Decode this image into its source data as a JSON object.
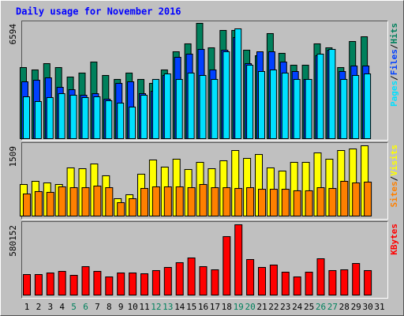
{
  "title": "Daily usage for November 2016",
  "chart_data": [
    {
      "type": "bar",
      "ylim": [
        0,
        6594
      ],
      "yticks": [
        6594
      ],
      "legend_separator": "/",
      "series": [
        {
          "name": "Hits",
          "color": "#00805c",
          "values": [
            4065,
            3930,
            4290,
            4065,
            3523,
            3750,
            4380,
            3613,
            3387,
            3750,
            3387,
            3161,
            3930,
            4968,
            5420,
            6594,
            5194,
            6188,
            6188,
            5058,
            4742,
            6007,
            4878,
            4200,
            4200,
            5420,
            5194,
            4065,
            5555,
            5826,
            null
          ]
        },
        {
          "name": "Files",
          "color": "#0040ff",
          "values": [
            3252,
            3342,
            3478,
            2935,
            2800,
            2484,
            2574,
            2258,
            3161,
            3252,
            2574,
            2710,
            3613,
            4652,
            4833,
            5104,
            3930,
            5058,
            5781,
            4290,
            4968,
            4968,
            4380,
            3839,
            3387,
            4742,
            5058,
            3839,
            4155,
            4155,
            null
          ]
        },
        {
          "name": "Pages",
          "color": "#00e0ff",
          "values": [
            2394,
            2123,
            2349,
            2574,
            2484,
            2349,
            2394,
            2168,
            2032,
            1807,
            2484,
            3387,
            3703,
            3387,
            3750,
            3613,
            3387,
            4968,
            6278,
            4200,
            3839,
            3930,
            3750,
            3387,
            3387,
            4833,
            5104,
            3387,
            3613,
            3703,
            null
          ]
        }
      ]
    },
    {
      "type": "bar",
      "ylim": [
        0,
        1509
      ],
      "yticks": [
        1509
      ],
      "legend_separator": "/",
      "series": [
        {
          "name": "Visits",
          "color": "#ffff00",
          "values": [
            678,
            746,
            712,
            678,
            1034,
            1017,
            1119,
            865,
            373,
            458,
            899,
            1204,
            1051,
            1221,
            1000,
            1153,
            1017,
            1187,
            1407,
            1238,
            1322,
            1034,
            966,
            1153,
            1153,
            1356,
            1221,
            1407,
            1441,
            1509,
            null
          ]
        },
        {
          "name": "Sites",
          "color": "#ff8000",
          "values": [
            475,
            526,
            509,
            627,
            610,
            610,
            644,
            610,
            288,
            373,
            593,
            627,
            627,
            627,
            610,
            678,
            610,
            610,
            593,
            610,
            576,
            576,
            576,
            543,
            543,
            610,
            593,
            746,
            712,
            729,
            null
          ]
        }
      ]
    },
    {
      "type": "bar",
      "ylim": [
        0,
        580152
      ],
      "yticks": [
        580152
      ],
      "series": [
        {
          "name": "KBytes",
          "color": "#ff0000",
          "values": [
            169494,
            169494,
            182532,
            195570,
            162975,
            234684,
            195570,
            149937,
            182532,
            182532,
            176013,
            202089,
            228165,
            267279,
            306393,
            234684,
            208608,
            482406,
            580152,
            293355,
            228165,
            247722,
            189051,
            149937,
            189051,
            299874,
            202089,
            208608,
            260760,
            202089,
            null
          ]
        }
      ],
      "categories": [
        "1",
        "2",
        "3",
        "4",
        "5",
        "6",
        "7",
        "8",
        "9",
        "10",
        "11",
        "12",
        "13",
        "14",
        "15",
        "16",
        "17",
        "18",
        "19",
        "20",
        "21",
        "22",
        "23",
        "24",
        "25",
        "26",
        "27",
        "28",
        "29",
        "30",
        "31"
      ],
      "category_colors": [
        "#000",
        "#000",
        "#000",
        "#000",
        "#00805c",
        "#00805c",
        "#000",
        "#000",
        "#000",
        "#000",
        "#000",
        "#00805c",
        "#00805c",
        "#000",
        "#000",
        "#000",
        "#000",
        "#000",
        "#00805c",
        "#00805c",
        "#000",
        "#000",
        "#000",
        "#000",
        "#000",
        "#00805c",
        "#00805c",
        "#000",
        "#000",
        "#000",
        "#000"
      ]
    }
  ]
}
